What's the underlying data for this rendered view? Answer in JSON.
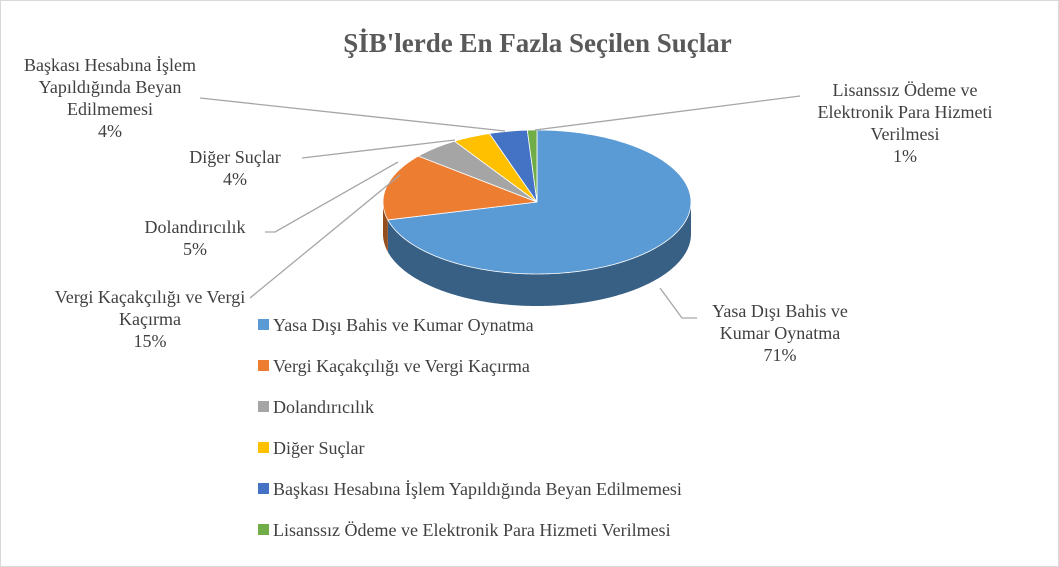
{
  "chart_data": {
    "type": "pie",
    "title": "ŞİB'lerde En Fazla Seçilen Suçlar",
    "categories": [
      "Yasa Dışı Bahis ve Kumar Oynatma",
      "Vergi Kaçakçılığı ve Vergi Kaçırma",
      "Dolandırıcılık",
      "Diğer Suçlar",
      "Başkası Hesabına İşlem Yapıldığında Beyan Edilmemesi",
      "Lisanssız Ödeme ve Elektronik Para Hizmeti Verilmesi"
    ],
    "values": [
      71,
      15,
      5,
      4,
      4,
      1
    ],
    "value_labels": [
      "71%",
      "15%",
      "5%",
      "4%",
      "4%",
      "1%"
    ],
    "colors": [
      "#5b9bd5",
      "#ed7d31",
      "#a5a5a5",
      "#ffc000",
      "#4472c4",
      "#70ad47"
    ]
  }
}
